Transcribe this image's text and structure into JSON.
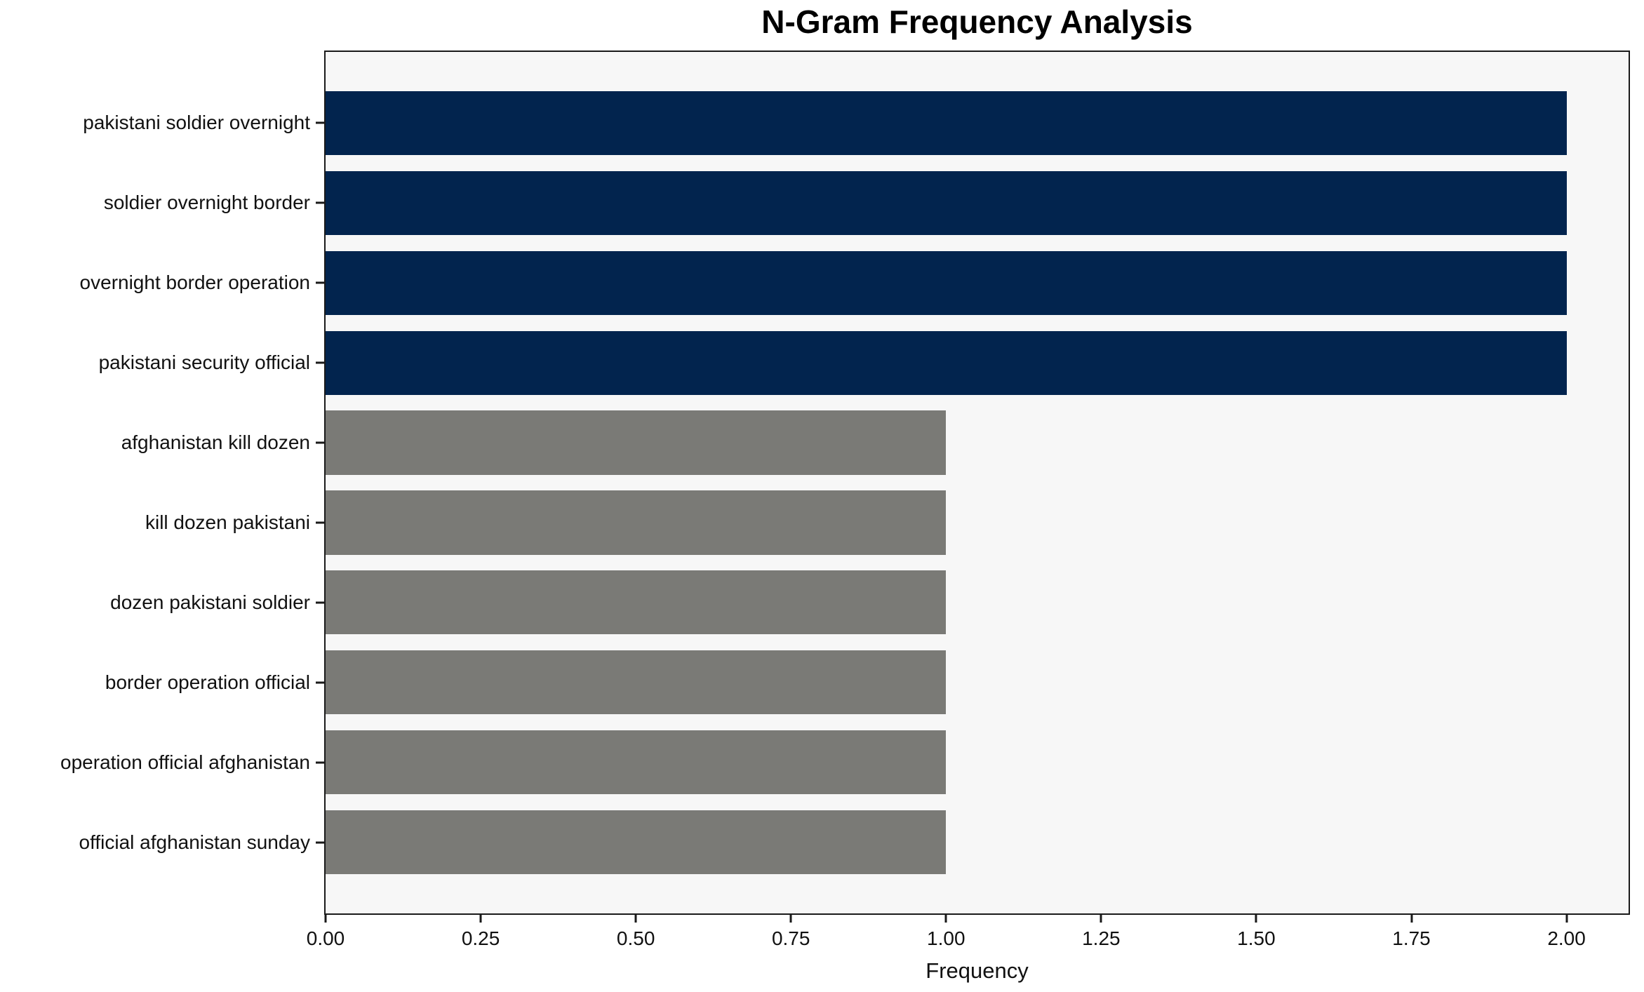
{
  "chart_data": {
    "type": "bar",
    "orientation": "horizontal",
    "title": "N-Gram Frequency Analysis",
    "xlabel": "Frequency",
    "ylabel": "",
    "categories": [
      "pakistani soldier overnight",
      "soldier overnight border",
      "overnight border operation",
      "pakistani security official",
      "afghanistan kill dozen",
      "kill dozen pakistani",
      "dozen pakistani soldier",
      "border operation official",
      "operation official afghanistan",
      "official afghanistan sunday"
    ],
    "values": [
      2,
      2,
      2,
      2,
      1,
      1,
      1,
      1,
      1,
      1
    ],
    "bar_colors": [
      "#02244e",
      "#02244e",
      "#02244e",
      "#02244e",
      "#7a7a76",
      "#7a7a76",
      "#7a7a76",
      "#7a7a76",
      "#7a7a76",
      "#7a7a76"
    ],
    "xlim": [
      0,
      2.1
    ],
    "xticks": [
      0.0,
      0.25,
      0.5,
      0.75,
      1.0,
      1.25,
      1.5,
      1.75,
      2.0
    ],
    "xtick_format_decimals": 2,
    "grid": false,
    "legend": null,
    "colors": {
      "high_frequency_bar": "#02244e",
      "low_frequency_bar": "#7a7a76",
      "plot_background": "#f7f7f7",
      "figure_background": "#ffffff",
      "spine": "#1a1a1a",
      "text": "#111111"
    }
  }
}
